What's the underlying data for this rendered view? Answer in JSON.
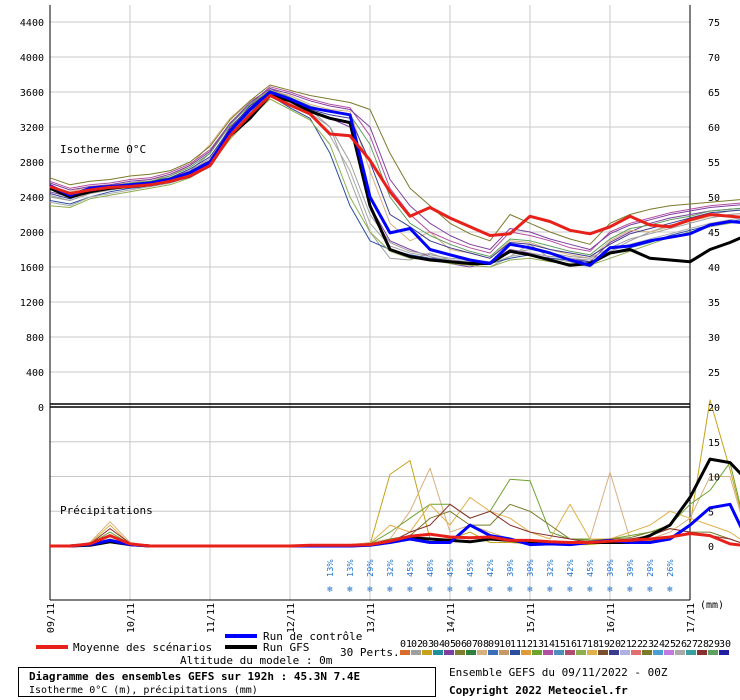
{
  "chart_data": {
    "type": "line",
    "title": "Diagramme des ensembles GEFS sur 192h : 45.3N 7.4E",
    "subtitle": "Isotherme 0°C (m), précipitations (mm)",
    "run_label": "Ensemble GEFS du 09/11/2022 - 00Z",
    "copyright": "Copyright 2022 Meteociel.fr",
    "model_altitude": "Altitude du modele : 0m",
    "upper_panel_label": "Isotherme 0°C",
    "lower_panel_label": "Précipitations",
    "unit_label": "(mm)",
    "x_ticks": [
      "09/11",
      "10/11",
      "11/11",
      "12/11",
      "13/11",
      "14/11",
      "15/11",
      "16/11",
      "17/11"
    ],
    "upper_left_ticks": [
      0,
      400,
      800,
      1200,
      1600,
      2000,
      2400,
      2800,
      3200,
      3600,
      4000,
      4400
    ],
    "upper_right_ticks": [
      20,
      25,
      30,
      35,
      40,
      45,
      50,
      55,
      60,
      65,
      70,
      75
    ],
    "lower_right_ticks": [
      0,
      5,
      10,
      15,
      20
    ],
    "x_step_hours": 6,
    "isotherm_mean": [
      2520,
      2440,
      2480,
      2510,
      2520,
      2540,
      2580,
      2640,
      2760,
      3100,
      3340,
      3560,
      3450,
      3350,
      3120,
      3100,
      2820,
      2460,
      2180,
      2280,
      2160,
      2060,
      1960,
      1980,
      2180,
      2120,
      2020,
      1980,
      2060,
      2180,
      2080,
      2060,
      2140,
      2200,
      2180,
      2160
    ],
    "isotherm_control": [
      2530,
      2420,
      2500,
      2520,
      2540,
      2560,
      2600,
      2680,
      2800,
      3150,
      3400,
      3600,
      3520,
      3420,
      3380,
      3340,
      2400,
      1990,
      2040,
      1800,
      1740,
      1680,
      1640,
      1860,
      1820,
      1760,
      1680,
      1620,
      1820,
      1840,
      1900,
      1940,
      1980,
      2080,
      2120,
      2100
    ],
    "isotherm_gfs": [
      2500,
      2400,
      2460,
      2500,
      2520,
      2540,
      2580,
      2640,
      2760,
      3100,
      3300,
      3560,
      3500,
      3380,
      3300,
      3250,
      2300,
      1800,
      1720,
      1680,
      1660,
      1640,
      1640,
      1780,
      1740,
      1680,
      1620,
      1640,
      1760,
      1800,
      1700,
      1680,
      1660,
      1800,
      1880,
      1980
    ],
    "isotherm_members": [
      [
        2400,
        2360,
        2440,
        2480,
        2520,
        2560,
        2600,
        2700,
        2900,
        3250,
        3450,
        3600,
        3500,
        3400,
        3200,
        2600,
        2000,
        1700,
        1680,
        1760,
        1680,
        1620,
        1600,
        1720,
        1860,
        1700,
        1660,
        1600,
        1780,
        1900,
        2000,
        2080,
        2120,
        2200,
        2240,
        2260
      ],
      [
        2460,
        2400,
        2480,
        2500,
        2540,
        2560,
        2620,
        2700,
        2820,
        3200,
        3420,
        3640,
        3540,
        3380,
        3300,
        3200,
        2300,
        1900,
        1800,
        1720,
        1640,
        1600,
        1660,
        1800,
        1760,
        1720,
        1700,
        1660,
        1880,
        2000,
        2100,
        2160,
        2200,
        2240,
        2260,
        2280
      ],
      [
        2520,
        2460,
        2520,
        2540,
        2560,
        2600,
        2640,
        2760,
        3000,
        3300,
        3500,
        3620,
        3560,
        3460,
        3400,
        3380,
        2700,
        2100,
        1900,
        2000,
        1800,
        1760,
        1700,
        1900,
        1880,
        1800,
        1740,
        1700,
        1900,
        2020,
        2000,
        2060,
        2120,
        2180,
        2200,
        2220
      ],
      [
        2360,
        2320,
        2400,
        2460,
        2500,
        2520,
        2560,
        2640,
        2780,
        3100,
        3380,
        3560,
        3420,
        3300,
        2900,
        2300,
        1900,
        1800,
        1740,
        1700,
        1680,
        1660,
        1640,
        1700,
        1740,
        1700,
        1680,
        1660,
        1760,
        1820,
        1880,
        1960,
        2020,
        2080,
        2120,
        2160
      ],
      [
        2580,
        2500,
        2540,
        2560,
        2600,
        2620,
        2680,
        2780,
        2940,
        3240,
        3460,
        3660,
        3600,
        3520,
        3460,
        3420,
        3100,
        2500,
        2200,
        2000,
        1900,
        1820,
        1760,
        2000,
        1960,
        1900,
        1820,
        1780,
        2000,
        2100,
        2160,
        2220,
        2260,
        2300,
        2320,
        2340
      ],
      [
        2300,
        2280,
        2380,
        2420,
        2460,
        2500,
        2540,
        2620,
        2760,
        3060,
        3300,
        3520,
        3400,
        3280,
        3000,
        2400,
        2000,
        1780,
        1700,
        1680,
        1640,
        1620,
        1600,
        1680,
        1700,
        1660,
        1640,
        1620,
        1700,
        1780,
        1860,
        1940,
        2000,
        2060,
        2100,
        2140
      ],
      [
        2440,
        2380,
        2460,
        2500,
        2540,
        2580,
        2620,
        2720,
        2860,
        3180,
        3440,
        3600,
        3500,
        3400,
        3340,
        3300,
        2800,
        2200,
        2060,
        1900,
        1820,
        1760,
        1700,
        1880,
        1860,
        1800,
        1760,
        1720,
        1860,
        1980,
        2040,
        2100,
        2160,
        2220,
        2240,
        2260
      ],
      [
        2620,
        2540,
        2580,
        2600,
        2640,
        2660,
        2700,
        2800,
        2980,
        3280,
        3500,
        3680,
        3620,
        3560,
        3520,
        3480,
        3400,
        2900,
        2500,
        2300,
        2100,
        1980,
        1900,
        2200,
        2100,
        2000,
        1920,
        1860,
        2100,
        2200,
        2260,
        2300,
        2320,
        2340,
        2360,
        2380
      ],
      [
        2340,
        2300,
        2400,
        2440,
        2480,
        2520,
        2560,
        2660,
        2800,
        3120,
        3360,
        3560,
        3460,
        3340,
        3100,
        2700,
        2100,
        1840,
        1760,
        1720,
        1680,
        1660,
        1640,
        1720,
        1760,
        1720,
        1700,
        1680,
        1780,
        1860,
        1920,
        1980,
        2040,
        2100,
        2140,
        2180
      ],
      [
        2500,
        2440,
        2500,
        2520,
        2560,
        2580,
        2640,
        2740,
        2900,
        3220,
        3460,
        3620,
        3540,
        3440,
        3380,
        3340,
        3000,
        2400,
        2100,
        1960,
        1860,
        1780,
        1720,
        1920,
        1900,
        1840,
        1780,
        1740,
        1920,
        2040,
        2080,
        2140,
        2180,
        2240,
        2260,
        2280
      ],
      [
        2420,
        2360,
        2440,
        2480,
        2520,
        2560,
        2600,
        2700,
        2840,
        3160,
        3400,
        3580,
        3480,
        3360,
        3200,
        2800,
        2200,
        1880,
        1780,
        1740,
        1700,
        1680,
        1660,
        1760,
        1800,
        1760,
        1720,
        1700,
        1820,
        1920,
        1980,
        2040,
        2100,
        2160,
        2200,
        2220
      ],
      [
        2560,
        2480,
        2520,
        2540,
        2580,
        2600,
        2660,
        2760,
        2920,
        3240,
        3480,
        3640,
        3580,
        3500,
        3440,
        3400,
        3200,
        2600,
        2300,
        2100,
        1960,
        1860,
        1800,
        2040,
        2000,
        1920,
        1860,
        1800,
        1980,
        2080,
        2140,
        2200,
        2240,
        2280,
        2300,
        2320
      ]
    ],
    "precip_mean": [
      0,
      0,
      0.3,
      1.5,
      0.3,
      0,
      0,
      0,
      0,
      0,
      0,
      0,
      0,
      0.1,
      0.1,
      0.1,
      0.2,
      0.7,
      1.4,
      1.7,
      1.3,
      1.2,
      1.3,
      0.8,
      0.8,
      0.6,
      0.5,
      0.5,
      0.7,
      0.8,
      1.0,
      1.3,
      1.8,
      1.5,
      0.3,
      0
    ],
    "precip_control": [
      0,
      0,
      0.2,
      0.8,
      0.2,
      0,
      0,
      0,
      0,
      0,
      0,
      0,
      0,
      0,
      0,
      0,
      0.1,
      0.5,
      1.0,
      0.5,
      0.5,
      3.0,
      1.5,
      1.0,
      0.2,
      0.3,
      0.2,
      0.5,
      0.8,
      0.5,
      0.5,
      1.0,
      3.0,
      5.5,
      6.0,
      0
    ],
    "precip_gfs": [
      0,
      0,
      0.1,
      0.6,
      0.2,
      0,
      0,
      0,
      0,
      0,
      0,
      0,
      0,
      0,
      0,
      0,
      0.2,
      0.6,
      1.2,
      1.0,
      0.8,
      0.6,
      1.0,
      0.8,
      0.5,
      0.3,
      0.3,
      0.5,
      0.5,
      0.5,
      1.5,
      3.0,
      7.0,
      12.5,
      12.0,
      9.0
    ],
    "precip_members": [
      [
        0,
        0,
        0.2,
        1.5,
        0.4,
        0,
        0,
        0,
        0,
        0,
        0,
        0,
        0,
        0,
        0,
        0.1,
        0.2,
        10.3,
        12.3,
        1.0,
        1.0,
        2.0,
        0.5,
        0.5,
        0.3,
        0.3,
        0.2,
        0.2,
        0.5,
        0.5,
        0.8,
        1.0,
        3.0,
        21.0,
        11.0,
        0
      ],
      [
        0,
        0,
        0.5,
        3.5,
        0.5,
        0,
        0,
        0,
        0,
        0,
        0,
        0,
        0,
        0,
        0.1,
        0.2,
        0.5,
        1.0,
        5.0,
        11.2,
        2.0,
        3.0,
        2.0,
        1.0,
        0.5,
        0.5,
        0.3,
        1.0,
        10.6,
        1.0,
        1.0,
        2.0,
        4.0,
        10.0,
        10.0,
        0
      ],
      [
        0,
        0,
        0.3,
        2.0,
        0.3,
        0,
        0,
        0,
        0,
        0,
        0,
        0,
        0,
        0,
        0,
        0.1,
        0.3,
        2.0,
        4.0,
        6.0,
        6.0,
        4.0,
        5.0,
        9.6,
        9.4,
        2.0,
        1.0,
        1.0,
        1.0,
        1.5,
        2.0,
        3.0,
        6.0,
        8.0,
        12.0,
        0
      ],
      [
        0,
        0,
        0.4,
        3.0,
        0.3,
        0,
        0,
        0,
        0,
        0,
        0,
        0,
        0,
        0,
        0,
        0.2,
        0.4,
        3.0,
        2.0,
        6.0,
        3.0,
        7.0,
        5.0,
        4.0,
        2.0,
        1.0,
        6.0,
        1.0,
        1.0,
        2.0,
        3.0,
        5.0,
        4.0,
        3.0,
        2.0,
        0
      ],
      [
        0,
        0,
        0.2,
        1.0,
        0.2,
        0,
        0,
        0,
        0,
        0,
        0,
        0,
        0,
        0,
        0,
        0.1,
        0.2,
        1.0,
        1.5,
        4.0,
        5.0,
        3.0,
        3.0,
        6.0,
        5.0,
        3.0,
        1.0,
        0.8,
        1.0,
        1.2,
        2.0,
        2.5,
        2.0,
        2.0,
        1.0,
        0
      ],
      [
        0,
        0,
        0.3,
        2.5,
        0.4,
        0,
        0,
        0,
        0,
        0,
        0,
        0,
        0,
        0,
        0,
        0.1,
        0.3,
        0.5,
        2.0,
        3.0,
        6.0,
        4.0,
        5.0,
        3.0,
        2.0,
        1.5,
        1.0,
        0.5,
        0.8,
        1.0,
        1.5,
        2.5,
        2.0,
        1.5,
        1.0,
        0
      ]
    ],
    "snow_probabilities": [
      "13%",
      "13%",
      "29%",
      "32%",
      "45%",
      "48%",
      "45%",
      "45%",
      "42%",
      "39%",
      "39%",
      "32%",
      "42%",
      "45%",
      "39%",
      "39%",
      "29%",
      "26%"
    ],
    "legend": {
      "mean": "Moyenne des scénarios",
      "control": "Run de contrôle",
      "gfs": "Run GFS",
      "perts": "30 Perts.",
      "members": [
        "01",
        "02",
        "03",
        "04",
        "05",
        "06",
        "07",
        "08",
        "09",
        "10",
        "11",
        "12",
        "13",
        "14",
        "15",
        "16",
        "17",
        "18",
        "19",
        "20",
        "21",
        "22",
        "23",
        "24",
        "25",
        "26",
        "27",
        "28",
        "29",
        "30"
      ],
      "member_colors": [
        "#d96b2b",
        "#9f9fa0",
        "#c6a21a",
        "#1f8f9c",
        "#7f3fa0",
        "#7f7f2f",
        "#2f7f3f",
        "#d8b080",
        "#3a6fb7",
        "#c59a6a",
        "#2a4f9f",
        "#e09a3a",
        "#6fa32f",
        "#b34f9f",
        "#4f8fbf",
        "#ae4f6f",
        "#8fae4f",
        "#e0b04a",
        "#7a4f2f",
        "#3a3a8f",
        "#b0b0e0",
        "#e07070",
        "#7a7a2a",
        "#4aa0d0",
        "#c07ae0",
        "#aaaaaa",
        "#3a9f9f",
        "#8a2f2f",
        "#5f9f5f",
        "#1f1fa0"
      ]
    }
  }
}
